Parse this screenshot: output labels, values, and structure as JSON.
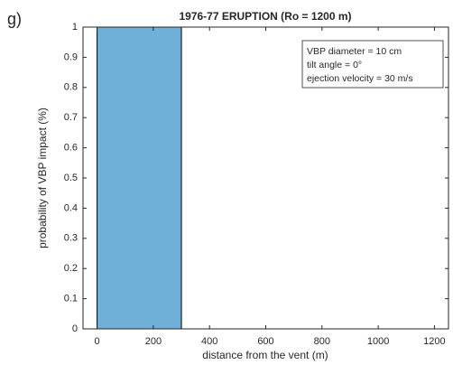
{
  "chart_data": {
    "type": "histogram",
    "panel_label": "g)",
    "title": "1976-77 ERUPTION (Ro = 1200 m)",
    "x_label": "distance from the vent (m)",
    "y_label": "probability of VBP impact (%)",
    "bins": [
      0,
      300
    ],
    "values": [
      1
    ],
    "color": "#6fb0d9",
    "xlim": [
      -50,
      1250
    ],
    "xticks": [
      0,
      200,
      400,
      600,
      800,
      1000,
      1200
    ],
    "ylim": [
      0,
      1
    ],
    "yticks": [
      0,
      0.1,
      0.2,
      0.3,
      0.4,
      0.5,
      0.6,
      0.7,
      0.8,
      0.9,
      1
    ],
    "annotation": [
      "VBP diameter = 10 cm",
      "tilt angle = 0°",
      "ejection velocity = 30 m/s"
    ]
  }
}
